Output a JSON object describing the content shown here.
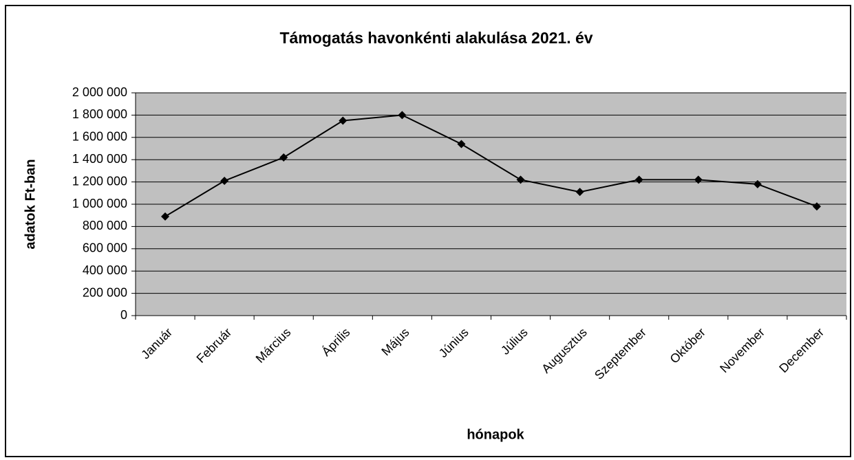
{
  "chart_data": {
    "type": "line",
    "title": "Támogatás havonkénti alakulása 2021. év",
    "x_label": "hónapok",
    "y_label": "adatok Ft-ban",
    "categories": [
      "Január",
      "Február",
      "Március",
      "Április",
      "Május",
      "Június",
      "Július",
      "Augusztus",
      "Szeptember",
      "Október",
      "November",
      "December"
    ],
    "series": [
      {
        "color": "#000000",
        "values": [
          890000,
          1210000,
          1420000,
          1750000,
          1800000,
          1540000,
          1220000,
          1110000,
          1220000,
          1220000,
          1180000,
          980000
        ]
      }
    ],
    "ylim": [
      0,
      2000000
    ],
    "yticks": [
      0,
      {
        "value": 200000,
        "label": "200 000"
      },
      {
        "value": 400000,
        "label": "400 000"
      },
      {
        "value": 600000,
        "label": "600 000"
      },
      {
        "value": 800000,
        "label": "800 000"
      },
      {
        "value": 1000000,
        "label": "1 000 000"
      },
      {
        "value": 1200000,
        "label": "1 200 000"
      },
      {
        "value": 1400000,
        "label": "1 400 000"
      },
      {
        "value": 1600000,
        "label": "1 600 000"
      },
      {
        "value": 1800000,
        "label": "1 800 000"
      },
      {
        "value": 2000000,
        "label": "2 000 000"
      }
    ],
    "grid": true,
    "plot_background": "#c0c0c0"
  }
}
